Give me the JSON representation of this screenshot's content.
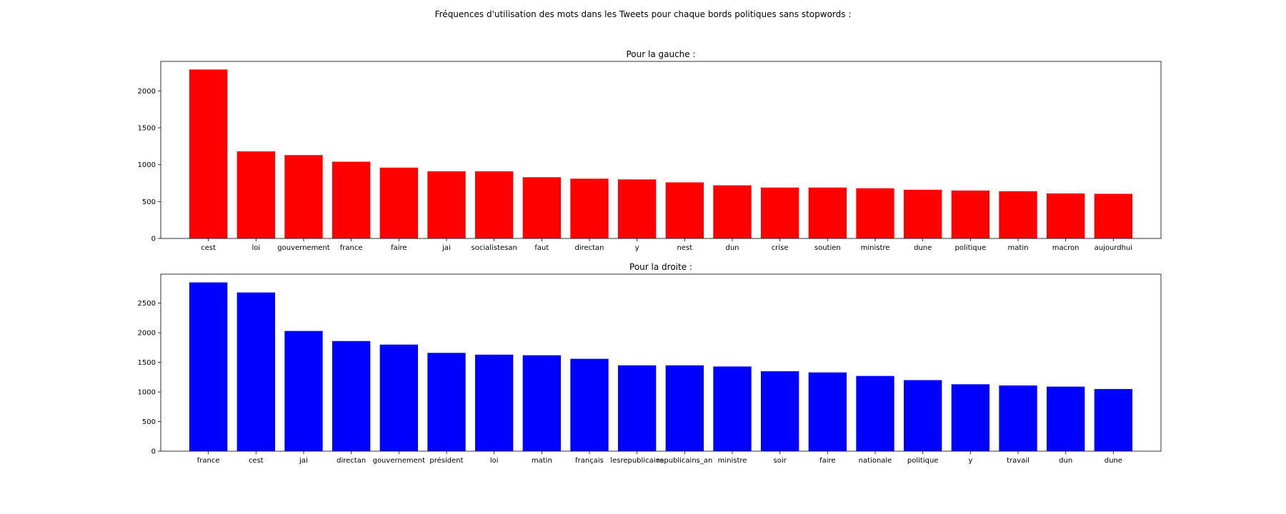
{
  "figure": {
    "title": "Fréquences d'utilisation des mots dans les Tweets pour chaque bords politiques sans stopwords :"
  },
  "chart_data": [
    {
      "type": "bar",
      "title": "Pour la gauche :",
      "xlabel": "",
      "ylabel": "",
      "color": "#ff0000",
      "grid": false,
      "ylim": [
        0,
        2400
      ],
      "yticks": [
        0,
        500,
        1000,
        1500,
        2000
      ],
      "categories": [
        "cest",
        "loi",
        "gouvernement",
        "france",
        "faire",
        "jai",
        "socialistesan",
        "faut",
        "directan",
        "y",
        "nest",
        "dun",
        "crise",
        "soutien",
        "ministre",
        "dune",
        "politique",
        "matin",
        "macron",
        "aujourdhui"
      ],
      "values": [
        2290,
        1180,
        1130,
        1040,
        960,
        910,
        910,
        830,
        810,
        800,
        760,
        720,
        690,
        690,
        680,
        660,
        650,
        640,
        610,
        605
      ]
    },
    {
      "type": "bar",
      "title": "Pour la droite :",
      "xlabel": "",
      "ylabel": "",
      "color": "#0000ff",
      "grid": false,
      "ylim": [
        0,
        2990
      ],
      "yticks": [
        0,
        500,
        1000,
        1500,
        2000,
        2500
      ],
      "categories": [
        "france",
        "cest",
        "jai",
        "directan",
        "gouvernement",
        "président",
        "loi",
        "matin",
        "français",
        "lesrepublicains",
        "republicains_an",
        "ministre",
        "soir",
        "faire",
        "nationale",
        "politique",
        "y",
        "travail",
        "dun",
        "dune"
      ],
      "values": [
        2850,
        2680,
        2030,
        1860,
        1800,
        1660,
        1630,
        1620,
        1560,
        1450,
        1450,
        1430,
        1350,
        1330,
        1270,
        1200,
        1130,
        1110,
        1090,
        1050
      ]
    }
  ]
}
